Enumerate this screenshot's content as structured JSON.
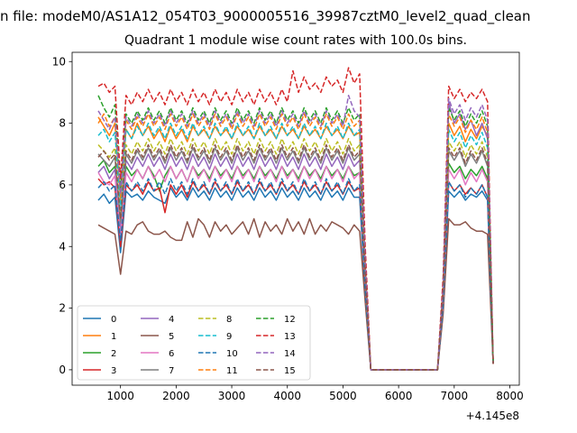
{
  "suptitle": "n file: modeM0/AS1A12_054T03_9000005516_39987cztM0_level2_quad_clean",
  "chart_data": {
    "type": "line",
    "title": "Quadrant 1 module wise count rates with 100.0s bins.",
    "xlabel": "",
    "ylabel": "",
    "x_offset_label": "+4.145e8",
    "xlim": [
      130,
      8170
    ],
    "ylim": [
      -0.5,
      10.3
    ],
    "xticks": [
      1000,
      2000,
      3000,
      4000,
      5000,
      6000,
      7000,
      8000
    ],
    "yticks": [
      0,
      2,
      4,
      6,
      8,
      10
    ],
    "grid": false,
    "legend": {
      "placement": "lower-left",
      "ncol": 4
    },
    "x": [
      600,
      700,
      800,
      900,
      1000,
      1100,
      1200,
      1300,
      1400,
      1500,
      1600,
      1700,
      1800,
      1900,
      2000,
      2100,
      2200,
      2300,
      2400,
      2500,
      2600,
      2700,
      2800,
      2900,
      3000,
      3100,
      3200,
      3300,
      3400,
      3500,
      3600,
      3700,
      3800,
      3900,
      4000,
      4100,
      4200,
      4300,
      4400,
      4500,
      4600,
      4700,
      4800,
      4900,
      5000,
      5100,
      5200,
      5300,
      5400,
      5500,
      6700,
      6800,
      6900,
      7000,
      7100,
      7200,
      7300,
      7400,
      7500,
      7600,
      7700
    ],
    "series": [
      {
        "name": "0",
        "color": "#1f77b4",
        "dash": "solid",
        "values": [
          5.5,
          5.7,
          5.4,
          5.6,
          3.8,
          5.8,
          5.6,
          5.7,
          5.5,
          5.8,
          5.6,
          5.5,
          5.4,
          5.9,
          5.6,
          5.8,
          5.5,
          5.9,
          5.6,
          5.8,
          5.5,
          5.9,
          5.6,
          5.8,
          5.5,
          5.9,
          5.6,
          5.8,
          5.5,
          5.9,
          5.6,
          5.8,
          5.5,
          5.9,
          5.6,
          5.8,
          5.5,
          5.9,
          5.6,
          5.8,
          5.5,
          5.9,
          5.6,
          5.8,
          5.5,
          5.9,
          5.6,
          5.6,
          2.5,
          0.0,
          0.0,
          2.0,
          5.8,
          5.6,
          5.8,
          5.5,
          5.7,
          5.6,
          5.8,
          5.5,
          0.2
        ]
      },
      {
        "name": "1",
        "color": "#ff7f0e",
        "dash": "solid",
        "values": [
          8.2,
          7.9,
          7.6,
          8.0,
          5.5,
          7.8,
          7.5,
          8.0,
          7.6,
          7.9,
          7.5,
          7.8,
          7.4,
          7.9,
          7.5,
          7.8,
          7.4,
          7.9,
          7.6,
          7.8,
          7.5,
          7.9,
          7.6,
          7.8,
          7.5,
          7.9,
          7.6,
          7.8,
          7.5,
          7.9,
          7.6,
          7.8,
          7.5,
          7.9,
          7.6,
          7.8,
          7.5,
          7.9,
          7.6,
          7.8,
          7.5,
          7.9,
          7.6,
          7.8,
          7.5,
          7.9,
          7.6,
          7.7,
          3.3,
          0.0,
          0.0,
          2.6,
          8.0,
          7.6,
          7.9,
          7.4,
          7.8,
          7.5,
          7.9,
          7.6,
          0.2
        ]
      },
      {
        "name": "2",
        "color": "#2ca02c",
        "dash": "solid",
        "values": [
          6.6,
          6.8,
          6.4,
          6.6,
          4.4,
          6.6,
          6.3,
          6.5,
          6.2,
          6.6,
          6.3,
          5.8,
          6.3,
          6.6,
          6.2,
          6.5,
          6.1,
          6.6,
          6.3,
          6.5,
          6.2,
          6.6,
          6.3,
          6.5,
          6.2,
          6.6,
          6.3,
          6.5,
          6.2,
          6.6,
          6.3,
          6.5,
          6.2,
          6.6,
          6.3,
          6.5,
          6.2,
          6.6,
          6.3,
          6.5,
          6.2,
          6.6,
          6.3,
          6.5,
          6.2,
          6.6,
          6.3,
          6.4,
          2.8,
          0.0,
          0.0,
          2.2,
          6.7,
          6.4,
          6.6,
          6.2,
          6.5,
          6.3,
          6.6,
          6.2,
          0.2
        ]
      },
      {
        "name": "3",
        "color": "#d62728",
        "dash": "solid",
        "values": [
          6.2,
          6.0,
          6.1,
          5.9,
          4.0,
          6.0,
          5.8,
          6.0,
          5.7,
          6.1,
          5.8,
          5.9,
          5.1,
          6.0,
          5.7,
          6.0,
          5.6,
          6.1,
          5.8,
          6.0,
          5.7,
          6.1,
          5.8,
          6.0,
          5.7,
          6.1,
          5.8,
          6.0,
          5.7,
          6.1,
          5.8,
          6.0,
          5.7,
          6.1,
          5.8,
          6.0,
          5.7,
          6.1,
          5.8,
          6.0,
          5.7,
          6.1,
          5.8,
          6.0,
          5.7,
          6.1,
          5.8,
          5.9,
          2.6,
          0.0,
          0.0,
          2.1,
          6.1,
          5.8,
          6.0,
          5.7,
          5.9,
          5.7,
          6.0,
          5.6,
          0.2
        ]
      },
      {
        "name": "4",
        "color": "#9467bd",
        "dash": "solid",
        "values": [
          6.4,
          6.6,
          6.2,
          6.5,
          4.6,
          6.8,
          6.5,
          6.9,
          6.6,
          7.0,
          6.6,
          6.9,
          6.5,
          7.0,
          6.6,
          6.9,
          6.5,
          7.0,
          6.6,
          6.9,
          6.5,
          7.0,
          6.6,
          6.9,
          6.5,
          7.0,
          6.6,
          6.9,
          6.5,
          7.0,
          6.6,
          6.9,
          6.5,
          7.0,
          6.6,
          6.9,
          6.5,
          7.0,
          6.6,
          6.9,
          6.5,
          7.0,
          6.6,
          6.9,
          6.5,
          7.0,
          6.6,
          6.8,
          3.0,
          0.0,
          0.0,
          2.3,
          8.7,
          8.0,
          8.3,
          7.8,
          8.1,
          7.6,
          8.0,
          7.5,
          0.2
        ]
      },
      {
        "name": "5",
        "color": "#8c564b",
        "dash": "solid",
        "values": [
          4.7,
          4.6,
          4.5,
          4.4,
          3.1,
          4.5,
          4.4,
          4.7,
          4.8,
          4.5,
          4.4,
          4.4,
          4.5,
          4.3,
          4.2,
          4.2,
          4.8,
          4.3,
          4.9,
          4.7,
          4.3,
          4.8,
          4.5,
          4.7,
          4.4,
          4.6,
          4.8,
          4.4,
          4.9,
          4.3,
          4.8,
          4.5,
          4.7,
          4.4,
          4.9,
          4.5,
          4.8,
          4.4,
          4.9,
          4.4,
          4.7,
          4.5,
          4.8,
          4.7,
          4.6,
          4.4,
          4.7,
          4.5,
          2.2,
          0.0,
          0.0,
          1.8,
          4.9,
          4.7,
          4.7,
          4.8,
          4.6,
          4.5,
          4.5,
          4.4,
          0.2
        ]
      },
      {
        "name": "6",
        "color": "#e377c2",
        "dash": "solid",
        "values": [
          6.4,
          6.1,
          6.0,
          6.3,
          4.3,
          6.4,
          6.1,
          6.5,
          6.2,
          6.6,
          6.2,
          6.5,
          6.1,
          6.6,
          6.2,
          6.5,
          6.1,
          6.6,
          6.2,
          6.5,
          6.1,
          6.6,
          6.2,
          6.5,
          6.1,
          6.6,
          6.2,
          6.5,
          6.1,
          6.6,
          6.2,
          6.5,
          6.1,
          6.6,
          6.2,
          6.5,
          6.1,
          6.6,
          6.2,
          6.5,
          6.1,
          6.6,
          6.2,
          6.5,
          6.1,
          6.6,
          6.2,
          6.4,
          2.8,
          0.0,
          0.0,
          2.2,
          6.5,
          6.2,
          6.5,
          6.0,
          6.4,
          6.1,
          6.5,
          6.1,
          0.2
        ]
      },
      {
        "name": "7",
        "color": "#7f7f7f",
        "dash": "solid",
        "values": [
          7.0,
          6.8,
          6.6,
          6.9,
          4.8,
          7.0,
          6.7,
          7.1,
          6.8,
          7.2,
          6.8,
          7.1,
          6.7,
          7.2,
          6.8,
          7.1,
          6.7,
          7.2,
          6.8,
          7.1,
          6.7,
          7.2,
          6.8,
          7.1,
          6.7,
          7.2,
          6.8,
          7.1,
          6.7,
          7.2,
          6.8,
          7.1,
          6.7,
          7.2,
          6.8,
          7.1,
          6.7,
          7.2,
          6.8,
          7.1,
          6.7,
          7.2,
          6.8,
          7.1,
          6.7,
          7.2,
          6.8,
          7.0,
          3.0,
          0.0,
          0.0,
          2.4,
          7.1,
          6.8,
          7.1,
          6.6,
          7.0,
          6.7,
          7.1,
          6.6,
          0.2
        ]
      },
      {
        "name": "8",
        "color": "#bcbd22",
        "dash": "dashed",
        "values": [
          7.3,
          7.1,
          6.9,
          7.2,
          5.0,
          7.3,
          7.0,
          7.4,
          7.1,
          7.5,
          7.1,
          7.4,
          7.0,
          7.5,
          7.1,
          7.4,
          7.0,
          7.5,
          7.1,
          7.4,
          7.0,
          7.5,
          7.1,
          7.4,
          7.0,
          7.5,
          7.1,
          7.4,
          7.0,
          7.5,
          7.1,
          7.4,
          7.0,
          7.5,
          7.1,
          7.4,
          7.0,
          7.5,
          7.1,
          7.4,
          7.0,
          7.5,
          7.1,
          7.4,
          7.0,
          7.5,
          7.1,
          7.3,
          3.1,
          0.0,
          0.0,
          2.5,
          7.4,
          7.1,
          7.4,
          6.9,
          7.3,
          7.0,
          7.4,
          6.9,
          0.2
        ]
      },
      {
        "name": "9",
        "color": "#17becf",
        "dash": "dashed",
        "values": [
          7.6,
          7.8,
          7.4,
          7.7,
          5.2,
          7.8,
          7.5,
          7.9,
          7.6,
          8.0,
          7.6,
          7.9,
          7.5,
          8.0,
          7.6,
          7.9,
          7.5,
          8.0,
          7.6,
          7.9,
          7.5,
          8.0,
          7.6,
          7.9,
          7.5,
          8.0,
          7.6,
          7.9,
          7.5,
          8.0,
          7.6,
          7.9,
          7.5,
          8.0,
          7.6,
          7.9,
          7.5,
          8.0,
          7.6,
          7.9,
          7.5,
          8.0,
          7.6,
          7.9,
          7.5,
          8.0,
          7.6,
          7.8,
          3.3,
          0.0,
          0.0,
          2.6,
          7.8,
          7.4,
          7.7,
          7.2,
          7.6,
          7.3,
          7.7,
          7.2,
          0.2
        ]
      },
      {
        "name": "10",
        "color": "#1f77b4",
        "dash": "dashed",
        "values": [
          5.9,
          6.1,
          5.8,
          6.0,
          4.2,
          6.1,
          5.8,
          6.1,
          5.8,
          6.2,
          5.8,
          6.1,
          5.7,
          6.2,
          5.8,
          6.1,
          5.7,
          6.2,
          5.8,
          6.1,
          5.7,
          6.2,
          5.8,
          6.1,
          5.7,
          6.2,
          5.8,
          6.1,
          5.7,
          6.2,
          5.8,
          6.1,
          5.7,
          6.2,
          5.8,
          6.1,
          5.7,
          6.2,
          5.8,
          6.1,
          5.7,
          6.2,
          5.8,
          6.1,
          5.7,
          6.2,
          5.8,
          6.0,
          2.6,
          0.0,
          0.0,
          2.1,
          6.1,
          5.8,
          6.0,
          5.6,
          5.9,
          5.7,
          6.0,
          5.6,
          0.2
        ]
      },
      {
        "name": "11",
        "color": "#ff7f0e",
        "dash": "dashed",
        "values": [
          8.0,
          8.3,
          7.9,
          8.2,
          5.6,
          8.1,
          7.8,
          8.2,
          7.9,
          8.3,
          7.9,
          8.2,
          7.8,
          8.3,
          7.9,
          8.2,
          7.8,
          8.3,
          7.9,
          8.2,
          7.8,
          8.3,
          7.9,
          8.2,
          7.8,
          8.3,
          7.9,
          8.2,
          7.8,
          8.3,
          7.9,
          8.2,
          7.8,
          8.3,
          7.9,
          8.2,
          7.8,
          8.3,
          7.9,
          8.2,
          7.8,
          8.3,
          7.9,
          8.2,
          7.8,
          8.3,
          7.9,
          8.1,
          3.4,
          0.0,
          0.0,
          2.7,
          8.3,
          7.9,
          8.2,
          7.7,
          8.1,
          7.8,
          8.2,
          7.7,
          0.2
        ]
      },
      {
        "name": "12",
        "color": "#2ca02c",
        "dash": "dashed",
        "values": [
          8.9,
          8.5,
          8.2,
          8.6,
          5.9,
          8.3,
          8.0,
          8.4,
          8.1,
          8.5,
          8.1,
          8.4,
          8.0,
          8.5,
          8.1,
          8.4,
          8.0,
          8.5,
          8.1,
          8.4,
          8.0,
          8.5,
          8.1,
          8.4,
          8.0,
          8.5,
          8.1,
          8.4,
          8.0,
          8.5,
          8.1,
          8.4,
          8.0,
          8.5,
          8.1,
          8.4,
          8.0,
          8.5,
          8.1,
          8.4,
          8.0,
          8.5,
          8.1,
          8.4,
          8.0,
          8.5,
          8.1,
          8.3,
          3.5,
          0.0,
          0.0,
          2.8,
          8.5,
          8.1,
          8.4,
          7.9,
          8.3,
          8.0,
          8.4,
          7.9,
          0.2
        ]
      },
      {
        "name": "13",
        "color": "#d62728",
        "dash": "dashed",
        "values": [
          9.2,
          9.3,
          9.0,
          9.2,
          6.2,
          8.9,
          8.6,
          9.0,
          8.7,
          9.1,
          8.7,
          9.0,
          8.6,
          9.1,
          8.7,
          9.0,
          8.6,
          9.1,
          8.7,
          9.0,
          8.6,
          9.1,
          8.7,
          9.0,
          8.6,
          9.1,
          8.7,
          9.0,
          8.6,
          9.1,
          8.7,
          9.0,
          8.6,
          9.1,
          8.7,
          9.7,
          9.0,
          9.5,
          9.1,
          9.3,
          9.0,
          9.5,
          9.2,
          9.4,
          9.0,
          9.8,
          9.3,
          9.6,
          4.0,
          0.0,
          0.0,
          3.0,
          9.2,
          8.8,
          9.1,
          8.7,
          9.0,
          8.8,
          9.1,
          8.7,
          0.2
        ]
      },
      {
        "name": "14",
        "color": "#9467bd",
        "dash": "dashed",
        "values": [
          8.4,
          8.1,
          7.8,
          8.2,
          5.7,
          8.2,
          7.9,
          8.3,
          8.0,
          8.4,
          8.0,
          8.3,
          7.9,
          8.4,
          8.0,
          8.3,
          7.9,
          8.4,
          8.0,
          8.3,
          7.9,
          8.4,
          8.0,
          8.3,
          7.9,
          8.4,
          8.0,
          8.3,
          7.9,
          8.4,
          8.0,
          8.3,
          7.9,
          8.4,
          8.0,
          8.3,
          7.9,
          8.4,
          8.0,
          8.3,
          7.9,
          8.4,
          8.0,
          8.3,
          7.9,
          8.9,
          8.4,
          8.2,
          3.5,
          0.0,
          0.0,
          2.7,
          8.8,
          8.3,
          8.6,
          8.1,
          8.5,
          8.2,
          8.6,
          8.1,
          0.2
        ]
      },
      {
        "name": "15",
        "color": "#8c564b",
        "dash": "dashed",
        "values": [
          6.9,
          7.1,
          6.8,
          7.0,
          4.9,
          7.1,
          6.8,
          7.2,
          6.9,
          7.3,
          6.9,
          7.2,
          6.8,
          7.3,
          6.9,
          7.2,
          6.8,
          7.3,
          6.9,
          7.2,
          6.8,
          7.3,
          6.9,
          7.2,
          6.8,
          7.3,
          6.9,
          7.2,
          6.8,
          7.3,
          6.9,
          7.2,
          6.8,
          7.3,
          6.9,
          7.2,
          6.8,
          7.3,
          6.9,
          7.2,
          6.8,
          7.3,
          6.9,
          7.2,
          6.8,
          7.3,
          6.9,
          7.1,
          3.1,
          0.0,
          0.0,
          2.5,
          7.2,
          6.9,
          7.2,
          6.7,
          7.1,
          6.8,
          7.2,
          6.7,
          0.2
        ]
      }
    ]
  }
}
